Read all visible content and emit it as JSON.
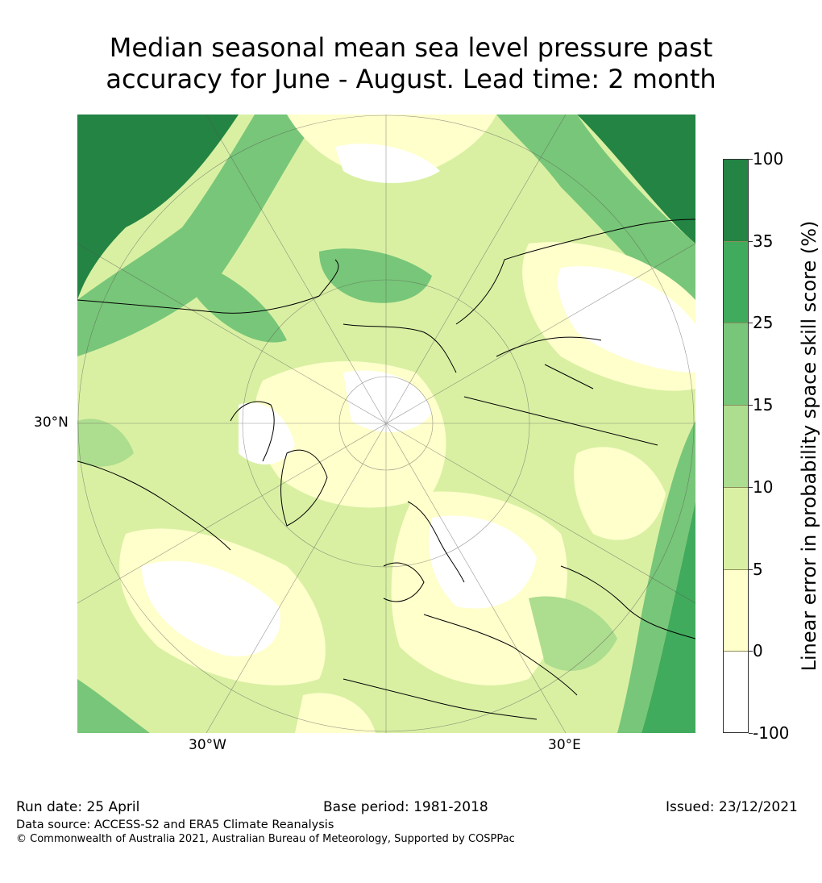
{
  "title": "Median seasonal mean sea level pressure past\naccuracy for June - August. Lead time: 2 month",
  "map": {
    "latitude_label": "30°N",
    "longitude_labels": {
      "west": "30°W",
      "east": "30°E"
    }
  },
  "legend": {
    "label": "Linear error in probability space skill score (%)",
    "ticks": [
      "100",
      "35",
      "25",
      "15",
      "10",
      "5",
      "0",
      "-100"
    ],
    "colors": [
      "#238443",
      "#41ab5d",
      "#78c679",
      "#addd8e",
      "#d9f0a3",
      "#ffffcc",
      "#ffffff"
    ]
  },
  "footer": {
    "run_date": "Run date: 25 April",
    "base_period": "Base period: 1981-2018",
    "issued": "Issued: 23/12/2021",
    "data_source": "Data source: ACCESS-S2 and ERA5 Climate Reanalysis",
    "copyright": "© Commonwealth of Australia 2021, Australian Bureau of Meteorology, Supported by COSPPac"
  }
}
